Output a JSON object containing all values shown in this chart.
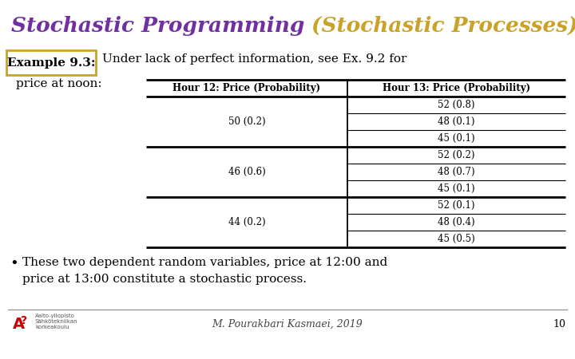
{
  "title_part1": "Stochastic Programming ",
  "title_part2": "(Stochastic Processes)",
  "title_color1": "#7030A0",
  "title_color2": "#C9A227",
  "example_label": "Example 9.3:",
  "example_box_color": "#C9A227",
  "subtitle": "Under lack of perfect information, see Ex. 9.2 for",
  "price_label": "price at noon:",
  "col1_header": "Hour 12: Price (Probability)",
  "col2_header": "Hour 13: Price (Probability)",
  "col1_data": [
    "50 (0.2)",
    "46 (0.6)",
    "44 (0.2)"
  ],
  "col2_data": [
    [
      "52 (0.8)",
      "48 (0.1)",
      "45 (0.1)"
    ],
    [
      "52 (0.2)",
      "48 (0.7)",
      "45 (0.1)"
    ],
    [
      "52 (0.1)",
      "48 (0.4)",
      "45 (0.5)"
    ]
  ],
  "bullet_line1": "These two dependent random variables, price at 12:00 and",
  "bullet_line2": "price at 13:00 constitute a stochastic process.",
  "footer_text": "M. Pourakbari Kasmaei, 2019",
  "page_number": "10",
  "background_color": "#FFFFFF",
  "text_color": "#000000",
  "title_fontsize": 19,
  "header_font_size": 8.5,
  "body_font_size": 8.5,
  "example_fontsize": 11,
  "subtitle_fontsize": 11,
  "bullet_fontsize": 11
}
